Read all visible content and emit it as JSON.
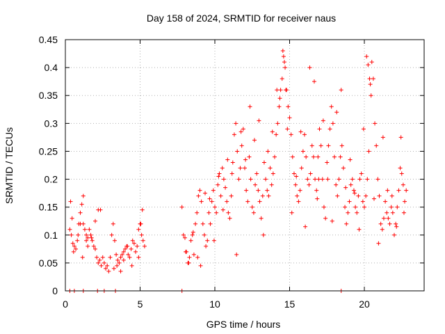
{
  "chart_data": {
    "type": "scatter",
    "title": "Day 158 of 2024, SRMTID for receiver naus",
    "xlabel": "GPS time / hours",
    "ylabel": "SRMTID / TECUs",
    "xlim": [
      0,
      24
    ],
    "ylim": [
      0,
      0.45
    ],
    "x_ticks": [
      0,
      5,
      10,
      15,
      20
    ],
    "y_ticks": [
      0,
      0.05,
      0.1,
      0.15,
      0.2,
      0.25,
      0.3,
      0.35,
      0.4,
      0.45
    ],
    "x_tick_labels": [
      "0",
      "5",
      "10",
      "15",
      "20"
    ],
    "y_tick_labels": [
      "0",
      "0.05",
      "0.1",
      "0.15",
      "0.2",
      "0.25",
      "0.3",
      "0.35",
      "0.4",
      "0.45"
    ],
    "grid": true,
    "marker": "+",
    "marker_color": "#ff0000",
    "series": [
      {
        "name": "SRMTID",
        "x": [
          0.3,
          0.4,
          0.5,
          0.6,
          0.7,
          0.8,
          0.9,
          1.0,
          1.1,
          1.2,
          1.3,
          1.4,
          1.5,
          1.6,
          1.7,
          1.8,
          1.9,
          2.0,
          2.1,
          2.2,
          2.3,
          2.4,
          2.5,
          2.6,
          2.7,
          2.8,
          2.9,
          3.0,
          3.1,
          3.2,
          3.3,
          3.4,
          3.5,
          3.6,
          3.7,
          3.8,
          3.9,
          4.0,
          4.1,
          4.2,
          4.3,
          4.4,
          4.5,
          4.6,
          4.7,
          4.8,
          4.9,
          5.0,
          5.1,
          5.2,
          5.3,
          7.8,
          7.9,
          8.0,
          8.1,
          8.2,
          8.3,
          8.4,
          8.5,
          8.6,
          8.7,
          8.8,
          8.9,
          9.0,
          9.1,
          9.2,
          9.3,
          9.4,
          9.5,
          9.6,
          9.7,
          9.8,
          9.9,
          10.0,
          10.1,
          10.2,
          10.3,
          10.4,
          10.5,
          10.6,
          10.7,
          10.8,
          10.9,
          11.0,
          11.1,
          11.2,
          11.3,
          11.4,
          11.5,
          11.6,
          11.7,
          11.8,
          11.9,
          12.0,
          12.1,
          12.2,
          12.3,
          12.4,
          12.5,
          12.6,
          12.7,
          12.8,
          12.9,
          13.0,
          13.1,
          13.2,
          13.3,
          13.4,
          13.5,
          13.6,
          13.7,
          13.8,
          13.9,
          14.0,
          14.1,
          14.2,
          14.3,
          14.4,
          14.5,
          14.6,
          14.7,
          14.8,
          14.9,
          15.0,
          15.1,
          15.2,
          15.3,
          15.4,
          15.5,
          15.6,
          15.7,
          15.8,
          15.9,
          16.0,
          16.1,
          16.2,
          16.3,
          16.4,
          16.5,
          16.6,
          16.7,
          16.8,
          16.9,
          17.0,
          17.1,
          17.2,
          17.3,
          17.4,
          17.5,
          17.6,
          17.7,
          17.8,
          17.9,
          18.0,
          18.1,
          18.2,
          18.3,
          18.4,
          18.5,
          18.6,
          18.7,
          18.8,
          18.9,
          19.0,
          19.1,
          19.2,
          19.3,
          19.4,
          19.5,
          19.6,
          19.7,
          19.8,
          19.9,
          20.0,
          20.1,
          20.2,
          20.3,
          20.4,
          20.5,
          20.6,
          20.7,
          20.8,
          20.9,
          21.0,
          21.1,
          21.2,
          21.3,
          21.4,
          21.5,
          21.6,
          21.7,
          21.8,
          21.9,
          22.0,
          22.1,
          22.2,
          22.3,
          22.4,
          22.5,
          22.6,
          22.7,
          22.8,
          0.35,
          1.2,
          0.45,
          1.4,
          0.55,
          0.85,
          1.0,
          1.15,
          1.5,
          1.75,
          2.0,
          2.2,
          2.35,
          3.25,
          3.45,
          3.7,
          3.9,
          4.15,
          4.45,
          4.9,
          5.05,
          5.15,
          8.05,
          8.25,
          8.55,
          8.85,
          9.05,
          9.35,
          9.65,
          9.95,
          10.25,
          10.55,
          10.85,
          11.15,
          11.45,
          11.75,
          12.05,
          12.35,
          12.65,
          12.95,
          13.25,
          13.55,
          13.85,
          14.15,
          14.35,
          14.55,
          14.65,
          14.75,
          14.85,
          15.15,
          15.45,
          15.75,
          16.05,
          16.35,
          16.65,
          16.85,
          16.95,
          17.25,
          17.55,
          17.85,
          18.15,
          18.45,
          18.75,
          19.05,
          19.35,
          19.65,
          19.95,
          20.15,
          20.25,
          20.35,
          20.45,
          20.65,
          20.95,
          21.25,
          21.55,
          21.85,
          22.15,
          22.45,
          22.65,
          0.3,
          0.6,
          1.2,
          2.15,
          2.6,
          3.35,
          7.8,
          18.45
        ],
        "y": [
          0.11,
          0.1,
          0.085,
          0.08,
          0.075,
          0.09,
          0.12,
          0.14,
          0.155,
          0.12,
          0.11,
          0.1,
          0.095,
          0.11,
          0.1,
          0.09,
          0.08,
          0.075,
          0.06,
          0.05,
          0.055,
          0.045,
          0.06,
          0.05,
          0.04,
          0.045,
          0.035,
          0.06,
          0.1,
          0.12,
          0.09,
          0.065,
          0.055,
          0.05,
          0.06,
          0.065,
          0.07,
          0.075,
          0.08,
          0.065,
          0.06,
          0.075,
          0.09,
          0.085,
          0.07,
          0.08,
          0.11,
          0.12,
          0.1,
          0.09,
          0.08,
          0.15,
          0.1,
          0.095,
          0.07,
          0.05,
          0.06,
          0.09,
          0.1,
          0.065,
          0.12,
          0.14,
          0.17,
          0.18,
          0.16,
          0.12,
          0.1,
          0.08,
          0.09,
          0.14,
          0.12,
          0.16,
          0.18,
          0.15,
          0.14,
          0.19,
          0.21,
          0.17,
          0.22,
          0.2,
          0.185,
          0.16,
          0.14,
          0.13,
          0.17,
          0.23,
          0.28,
          0.3,
          0.25,
          0.2,
          0.22,
          0.26,
          0.29,
          0.22,
          0.18,
          0.16,
          0.24,
          0.2,
          0.15,
          0.14,
          0.19,
          0.21,
          0.18,
          0.16,
          0.13,
          0.17,
          0.23,
          0.2,
          0.18,
          0.17,
          0.22,
          0.19,
          0.21,
          0.24,
          0.28,
          0.3,
          0.33,
          0.36,
          0.38,
          0.42,
          0.4,
          0.36,
          0.33,
          0.31,
          0.28,
          0.24,
          0.21,
          0.19,
          0.17,
          0.16,
          0.18,
          0.22,
          0.25,
          0.28,
          0.24,
          0.2,
          0.19,
          0.21,
          0.26,
          0.24,
          0.2,
          0.18,
          0.24,
          0.29,
          0.26,
          0.2,
          0.15,
          0.13,
          0.23,
          0.26,
          0.29,
          0.33,
          0.3,
          0.24,
          0.19,
          0.17,
          0.2,
          0.24,
          0.26,
          0.22,
          0.15,
          0.12,
          0.14,
          0.16,
          0.19,
          0.2,
          0.18,
          0.15,
          0.14,
          0.17,
          0.2,
          0.21,
          0.16,
          0.15,
          0.17,
          0.2,
          0.25,
          0.37,
          0.41,
          0.38,
          0.3,
          0.26,
          0.2,
          0.17,
          0.12,
          0.11,
          0.13,
          0.16,
          0.14,
          0.13,
          0.12,
          0.15,
          0.14,
          0.1,
          0.12,
          0.15,
          0.18,
          0.22,
          0.21,
          0.19,
          0.16,
          0.18,
          0.16,
          0.17,
          0.13,
          0.09,
          0.07,
          0.1,
          0.12,
          0.06,
          0.08,
          0.095,
          0.125,
          0.145,
          0.145,
          0.04,
          0.045,
          0.035,
          0.055,
          0.08,
          0.045,
          0.06,
          0.12,
          0.145,
          0.07,
          0.05,
          0.105,
          0.06,
          0.045,
          0.175,
          0.165,
          0.09,
          0.205,
          0.145,
          0.235,
          0.21,
          0.065,
          0.285,
          0.235,
          0.33,
          0.27,
          0.305,
          0.1,
          0.25,
          0.285,
          0.36,
          0.345,
          0.43,
          0.41,
          0.36,
          0.29,
          0.14,
          0.205,
          0.285,
          0.115,
          0.4,
          0.375,
          0.165,
          0.2,
          0.305,
          0.2,
          0.125,
          0.32,
          0.36,
          0.185,
          0.235,
          0.175,
          0.11,
          0.29,
          0.42,
          0.405,
          0.38,
          0.35,
          0.165,
          0.085,
          0.275,
          0.18,
          0.17,
          0.115,
          0.275,
          0.14,
          0,
          0,
          0,
          0,
          0,
          0,
          0,
          0
        ]
      }
    ]
  }
}
